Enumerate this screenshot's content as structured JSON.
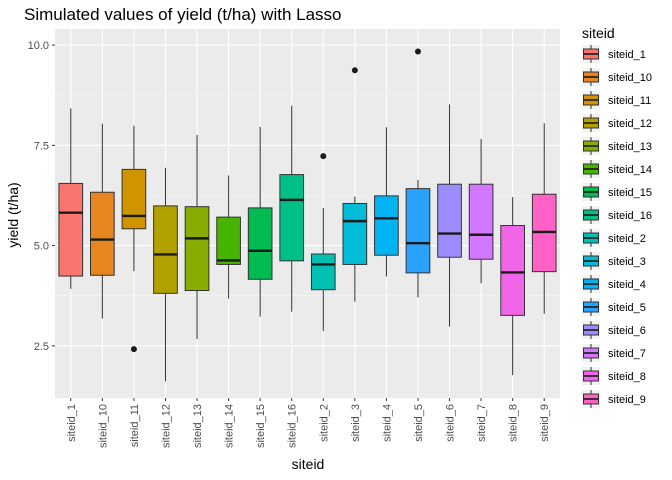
{
  "chart_data": {
    "type": "box",
    "title": "Simulated values of yield (t/ha) with Lasso",
    "xlabel": "siteid",
    "ylabel": "yield (t/ha)",
    "ylim": [
      1.2,
      10.4
    ],
    "yticks": [
      2.5,
      5.0,
      7.5,
      10.0
    ],
    "ytick_labels": [
      "2.5",
      "5.0",
      "7.5",
      "10.0"
    ],
    "legend_title": "siteid",
    "legend_position": "right",
    "grid": true,
    "categories": [
      "siteid_1",
      "siteid_10",
      "siteid_11",
      "siteid_12",
      "siteid_13",
      "siteid_14",
      "siteid_15",
      "siteid_16",
      "siteid_2",
      "siteid_3",
      "siteid_4",
      "siteid_5",
      "siteid_6",
      "siteid_7",
      "siteid_8",
      "siteid_9"
    ],
    "colors": [
      "#F8766D",
      "#E7851E",
      "#D09400",
      "#B2A100",
      "#89AC00",
      "#45B500",
      "#00BC51",
      "#00C087",
      "#00C0B2",
      "#00BCD6",
      "#00B3F2",
      "#29A3FF",
      "#9C8DFF",
      "#D277FF",
      "#F166E8",
      "#FF61C7"
    ],
    "boxes": [
      {
        "min": 3.92,
        "q1": 4.24,
        "median": 5.82,
        "q3": 6.55,
        "max": 8.42,
        "outliers": []
      },
      {
        "min": 3.18,
        "q1": 4.26,
        "median": 5.15,
        "q3": 6.33,
        "max": 8.04,
        "outliers": []
      },
      {
        "min": 4.36,
        "q1": 5.42,
        "median": 5.74,
        "q3": 6.9,
        "max": 7.99,
        "outliers": [
          2.42
        ]
      },
      {
        "min": 1.62,
        "q1": 3.81,
        "median": 4.78,
        "q3": 5.99,
        "max": 6.94,
        "outliers": []
      },
      {
        "min": 2.67,
        "q1": 3.88,
        "median": 5.18,
        "q3": 5.97,
        "max": 7.76,
        "outliers": []
      },
      {
        "min": 3.68,
        "q1": 4.53,
        "median": 4.63,
        "q3": 5.71,
        "max": 6.75,
        "outliers": []
      },
      {
        "min": 3.23,
        "q1": 4.16,
        "median": 4.87,
        "q3": 5.94,
        "max": 7.96,
        "outliers": []
      },
      {
        "min": 3.35,
        "q1": 4.62,
        "median": 6.14,
        "q3": 6.77,
        "max": 8.49,
        "outliers": []
      },
      {
        "min": 2.87,
        "q1": 3.9,
        "median": 4.53,
        "q3": 4.79,
        "max": 5.94,
        "outliers": [
          7.23
        ]
      },
      {
        "min": 3.6,
        "q1": 4.53,
        "median": 5.61,
        "q3": 6.05,
        "max": 6.22,
        "outliers": [
          9.37
        ]
      },
      {
        "min": 4.23,
        "q1": 4.76,
        "median": 5.68,
        "q3": 6.24,
        "max": 7.95,
        "outliers": []
      },
      {
        "min": 3.71,
        "q1": 4.32,
        "median": 5.06,
        "q3": 6.42,
        "max": 6.64,
        "outliers": [
          9.84
        ]
      },
      {
        "min": 2.98,
        "q1": 4.71,
        "median": 5.3,
        "q3": 6.53,
        "max": 8.52,
        "outliers": []
      },
      {
        "min": 4.06,
        "q1": 4.66,
        "median": 5.27,
        "q3": 6.53,
        "max": 7.66,
        "outliers": []
      },
      {
        "min": 1.77,
        "q1": 3.26,
        "median": 4.33,
        "q3": 5.5,
        "max": 6.21,
        "outliers": []
      },
      {
        "min": 3.3,
        "q1": 4.35,
        "median": 5.34,
        "q3": 6.28,
        "max": 8.05,
        "outliers": []
      }
    ]
  }
}
